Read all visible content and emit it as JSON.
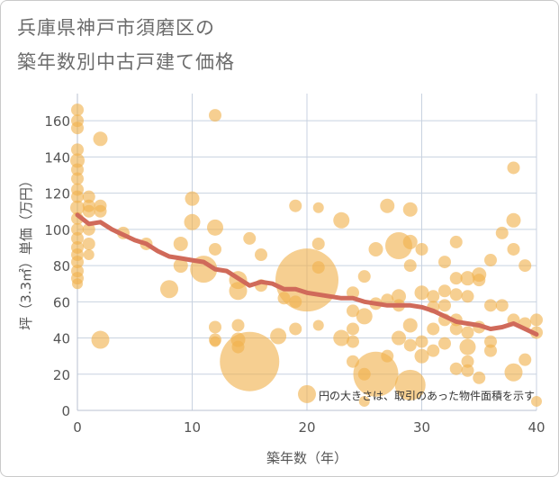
{
  "title_lines": [
    "兵庫県神戸市須磨区の",
    "築年数別中古戸建て価格"
  ],
  "chart_data": {
    "type": "scatter",
    "title": "兵庫県神戸市須磨区の築年数別中古戸建て価格",
    "xlabel": "築年数（年）",
    "ylabel": "坪（3.3㎡）単価（万円）",
    "xlim": [
      0,
      40
    ],
    "ylim": [
      0,
      175
    ],
    "xticks": [
      0,
      10,
      20,
      30,
      40
    ],
    "yticks": [
      0,
      20,
      40,
      60,
      80,
      100,
      120,
      140,
      160
    ],
    "grid": true,
    "note": "円の大きさは、取引のあった物件面積を示す",
    "colors": {
      "bubble": "#f0b24e",
      "trend": "#d06a5a",
      "grid": "#c8d2e0",
      "plot_bg": "#ffffff"
    },
    "bubbles": [
      {
        "x": 0,
        "y": 166,
        "s": 7
      },
      {
        "x": 0,
        "y": 160,
        "s": 7
      },
      {
        "x": 0,
        "y": 156,
        "s": 7
      },
      {
        "x": 0,
        "y": 144,
        "s": 7
      },
      {
        "x": 0,
        "y": 138,
        "s": 8
      },
      {
        "x": 0,
        "y": 133,
        "s": 7
      },
      {
        "x": 0,
        "y": 128,
        "s": 7
      },
      {
        "x": 0,
        "y": 122,
        "s": 7
      },
      {
        "x": 0,
        "y": 118,
        "s": 7
      },
      {
        "x": 0,
        "y": 112,
        "s": 8
      },
      {
        "x": 0,
        "y": 106,
        "s": 7
      },
      {
        "x": 0,
        "y": 100,
        "s": 7
      },
      {
        "x": 0,
        "y": 95,
        "s": 7
      },
      {
        "x": 0,
        "y": 90,
        "s": 7
      },
      {
        "x": 0,
        "y": 86,
        "s": 7
      },
      {
        "x": 0,
        "y": 82,
        "s": 7
      },
      {
        "x": 0,
        "y": 77,
        "s": 7
      },
      {
        "x": 0,
        "y": 73,
        "s": 7
      },
      {
        "x": 0,
        "y": 70,
        "s": 6
      },
      {
        "x": 1,
        "y": 118,
        "s": 7
      },
      {
        "x": 1,
        "y": 113,
        "s": 7
      },
      {
        "x": 1,
        "y": 110,
        "s": 7
      },
      {
        "x": 1,
        "y": 100,
        "s": 7
      },
      {
        "x": 1,
        "y": 92,
        "s": 7
      },
      {
        "x": 1,
        "y": 86,
        "s": 6
      },
      {
        "x": 2,
        "y": 150,
        "s": 8
      },
      {
        "x": 2,
        "y": 113,
        "s": 7
      },
      {
        "x": 2,
        "y": 110,
        "s": 7
      },
      {
        "x": 2,
        "y": 39,
        "s": 10
      },
      {
        "x": 4,
        "y": 98,
        "s": 7
      },
      {
        "x": 6,
        "y": 92,
        "s": 7
      },
      {
        "x": 8,
        "y": 67,
        "s": 10
      },
      {
        "x": 9,
        "y": 92,
        "s": 8
      },
      {
        "x": 9,
        "y": 80,
        "s": 8
      },
      {
        "x": 10,
        "y": 117,
        "s": 8
      },
      {
        "x": 10,
        "y": 104,
        "s": 9
      },
      {
        "x": 11,
        "y": 78,
        "s": 15
      },
      {
        "x": 12,
        "y": 163,
        "s": 7
      },
      {
        "x": 12,
        "y": 101,
        "s": 9
      },
      {
        "x": 12,
        "y": 89,
        "s": 7
      },
      {
        "x": 12,
        "y": 46,
        "s": 7
      },
      {
        "x": 12,
        "y": 39,
        "s": 7
      },
      {
        "x": 12,
        "y": 38,
        "s": 6
      },
      {
        "x": 14,
        "y": 72,
        "s": 10
      },
      {
        "x": 14,
        "y": 66,
        "s": 10
      },
      {
        "x": 14,
        "y": 47,
        "s": 7
      },
      {
        "x": 14,
        "y": 39,
        "s": 8
      },
      {
        "x": 14,
        "y": 35,
        "s": 7
      },
      {
        "x": 15,
        "y": 95,
        "s": 7
      },
      {
        "x": 15,
        "y": 27,
        "s": 33
      },
      {
        "x": 16,
        "y": 86,
        "s": 7
      },
      {
        "x": 16,
        "y": 69,
        "s": 7
      },
      {
        "x": 17.5,
        "y": 41,
        "s": 9
      },
      {
        "x": 18,
        "y": 62,
        "s": 7
      },
      {
        "x": 19,
        "y": 113,
        "s": 7
      },
      {
        "x": 19,
        "y": 60,
        "s": 7
      },
      {
        "x": 19,
        "y": 45,
        "s": 7
      },
      {
        "x": 20,
        "y": 9,
        "s": 10
      },
      {
        "x": 20,
        "y": 72,
        "s": 35
      },
      {
        "x": 21,
        "y": 112,
        "s": 6
      },
      {
        "x": 21,
        "y": 92,
        "s": 7
      },
      {
        "x": 21,
        "y": 79,
        "s": 7
      },
      {
        "x": 21,
        "y": 47,
        "s": 6
      },
      {
        "x": 23,
        "y": 105,
        "s": 9
      },
      {
        "x": 23,
        "y": 40,
        "s": 9
      },
      {
        "x": 24,
        "y": 65,
        "s": 7
      },
      {
        "x": 24,
        "y": 55,
        "s": 7
      },
      {
        "x": 24,
        "y": 45,
        "s": 7
      },
      {
        "x": 24,
        "y": 38,
        "s": 7
      },
      {
        "x": 24,
        "y": 27,
        "s": 7
      },
      {
        "x": 25,
        "y": 74,
        "s": 7
      },
      {
        "x": 25,
        "y": 52,
        "s": 9
      },
      {
        "x": 25,
        "y": 20,
        "s": 7
      },
      {
        "x": 25,
        "y": 5,
        "s": 6
      },
      {
        "x": 26,
        "y": 89,
        "s": 8
      },
      {
        "x": 26,
        "y": 59,
        "s": 7
      },
      {
        "x": 26,
        "y": 20,
        "s": 25
      },
      {
        "x": 27,
        "y": 113,
        "s": 8
      },
      {
        "x": 27,
        "y": 61,
        "s": 7
      },
      {
        "x": 27,
        "y": 30,
        "s": 7
      },
      {
        "x": 28,
        "y": 91,
        "s": 15
      },
      {
        "x": 28,
        "y": 63,
        "s": 8
      },
      {
        "x": 28,
        "y": 58,
        "s": 7
      },
      {
        "x": 28,
        "y": 40,
        "s": 8
      },
      {
        "x": 29,
        "y": 111,
        "s": 8
      },
      {
        "x": 29,
        "y": 93,
        "s": 8
      },
      {
        "x": 29,
        "y": 80,
        "s": 7
      },
      {
        "x": 29,
        "y": 47,
        "s": 8
      },
      {
        "x": 29,
        "y": 36,
        "s": 7
      },
      {
        "x": 29,
        "y": 14,
        "s": 17
      },
      {
        "x": 30,
        "y": 89,
        "s": 7
      },
      {
        "x": 30,
        "y": 65,
        "s": 8
      },
      {
        "x": 30,
        "y": 38,
        "s": 7
      },
      {
        "x": 30,
        "y": 30,
        "s": 8
      },
      {
        "x": 31,
        "y": 63,
        "s": 7
      },
      {
        "x": 31,
        "y": 57,
        "s": 7
      },
      {
        "x": 31,
        "y": 45,
        "s": 7
      },
      {
        "x": 31,
        "y": 33,
        "s": 7
      },
      {
        "x": 32,
        "y": 82,
        "s": 7
      },
      {
        "x": 32,
        "y": 66,
        "s": 7
      },
      {
        "x": 32,
        "y": 58,
        "s": 7
      },
      {
        "x": 32,
        "y": 50,
        "s": 7
      },
      {
        "x": 32,
        "y": 37,
        "s": 7
      },
      {
        "x": 33,
        "y": 93,
        "s": 7
      },
      {
        "x": 33,
        "y": 73,
        "s": 7
      },
      {
        "x": 33,
        "y": 64,
        "s": 7
      },
      {
        "x": 33,
        "y": 50,
        "s": 7
      },
      {
        "x": 33,
        "y": 45,
        "s": 7
      },
      {
        "x": 33,
        "y": 23,
        "s": 7
      },
      {
        "x": 34,
        "y": 73,
        "s": 8
      },
      {
        "x": 34,
        "y": 63,
        "s": 7
      },
      {
        "x": 34,
        "y": 43,
        "s": 7
      },
      {
        "x": 34,
        "y": 35,
        "s": 9
      },
      {
        "x": 34,
        "y": 27,
        "s": 7
      },
      {
        "x": 34,
        "y": 22,
        "s": 7
      },
      {
        "x": 35,
        "y": 75,
        "s": 8
      },
      {
        "x": 35,
        "y": 72,
        "s": 7
      },
      {
        "x": 35,
        "y": 46,
        "s": 7
      },
      {
        "x": 35,
        "y": 18,
        "s": 7
      },
      {
        "x": 36,
        "y": 83,
        "s": 7
      },
      {
        "x": 36,
        "y": 58,
        "s": 7
      },
      {
        "x": 36,
        "y": 38,
        "s": 7
      },
      {
        "x": 36,
        "y": 33,
        "s": 7
      },
      {
        "x": 37,
        "y": 98,
        "s": 7
      },
      {
        "x": 37,
        "y": 58,
        "s": 7
      },
      {
        "x": 38,
        "y": 134,
        "s": 7
      },
      {
        "x": 38,
        "y": 105,
        "s": 8
      },
      {
        "x": 38,
        "y": 89,
        "s": 7
      },
      {
        "x": 38,
        "y": 50,
        "s": 7
      },
      {
        "x": 38,
        "y": 21,
        "s": 10
      },
      {
        "x": 39,
        "y": 80,
        "s": 7
      },
      {
        "x": 39,
        "y": 48,
        "s": 7
      },
      {
        "x": 39,
        "y": 28,
        "s": 7
      },
      {
        "x": 40,
        "y": 50,
        "s": 7
      },
      {
        "x": 40,
        "y": 43,
        "s": 7
      },
      {
        "x": 40,
        "y": 5,
        "s": 6
      }
    ],
    "trend": {
      "x": [
        0,
        1,
        2,
        3,
        4,
        5,
        6,
        7,
        8,
        9,
        10,
        11,
        12,
        13,
        14,
        15,
        16,
        17,
        18,
        19,
        20,
        21,
        22,
        23,
        24,
        25,
        26,
        27,
        28,
        29,
        30,
        31,
        32,
        33,
        34,
        35,
        36,
        37,
        38,
        39,
        40
      ],
      "y": [
        108,
        103,
        104,
        100,
        97,
        94,
        92,
        88,
        85,
        84,
        83,
        82,
        78,
        77,
        73,
        69,
        71,
        70,
        67,
        67,
        65,
        64,
        63,
        62,
        62,
        60,
        59,
        58,
        58,
        58,
        57,
        55,
        52,
        49,
        48,
        47,
        45,
        46,
        48,
        45,
        42
      ]
    }
  }
}
